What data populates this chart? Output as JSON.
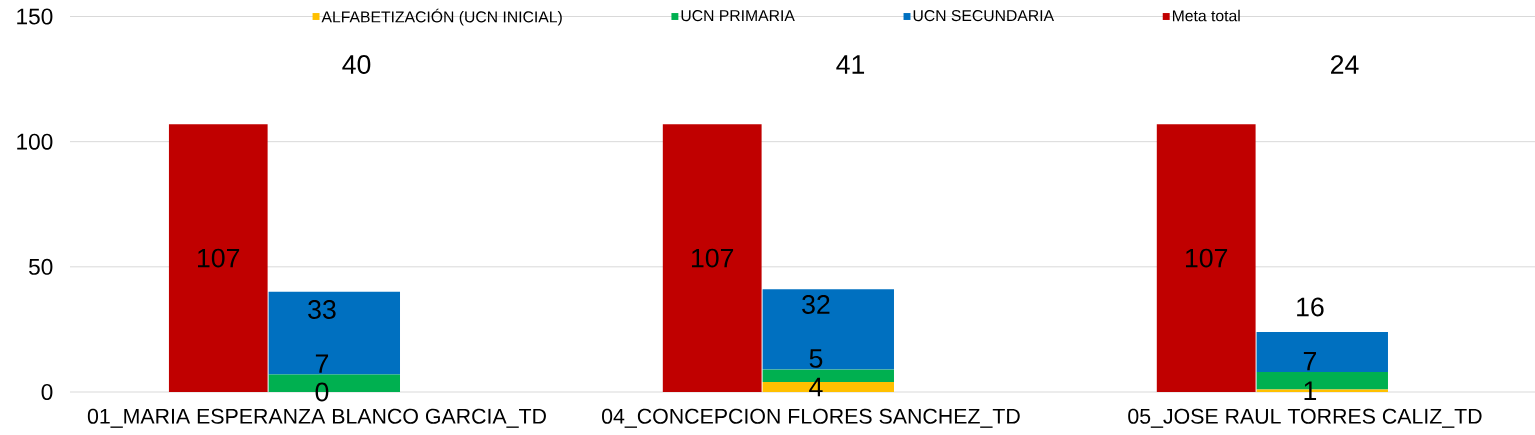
{
  "chart_data": {
    "type": "bar",
    "categories": [
      "01_MARIA ESPERANZA BLANCO GARCIA_TD",
      "04_CONCEPCION FLORES SANCHEZ_TD",
      "05_JOSE RAUL TORRES CALIZ_TD"
    ],
    "series": [
      {
        "name": "ALFABETIZACIÓN (UCN INICIAL)",
        "color": "#ffc000",
        "values": [
          0,
          4,
          1
        ],
        "value_labels": [
          null,
          "4",
          "1"
        ]
      },
      {
        "name": "UCN PRIMARIA",
        "color": "#00b050",
        "values": [
          7,
          5,
          7
        ],
        "value_labels": [
          "7",
          "5",
          "7"
        ]
      },
      {
        "name": "UCN SECUNDARIA",
        "color": "#0070c0",
        "values": [
          33,
          32,
          16
        ],
        "value_labels": [
          "33",
          "32",
          "16"
        ]
      },
      {
        "name": "Meta total",
        "color": "#c00000",
        "values": [
          107,
          107,
          107
        ],
        "value_labels": [
          "107",
          "107",
          "107"
        ],
        "axis": "y2"
      }
    ],
    "annotations": [
      {
        "text": "0",
        "x": "01_MARIA ESPERANZA BLANCO GARCIA_TD",
        "y": 0
      }
    ],
    "stacked": true,
    "totals": [
      "40",
      "41",
      "24"
    ],
    "ylim": [
      0,
      150
    ],
    "yticks": [
      0,
      50,
      100,
      150
    ],
    "y2lim": [
      0,
      150
    ],
    "grid": "y",
    "legend": "top"
  }
}
